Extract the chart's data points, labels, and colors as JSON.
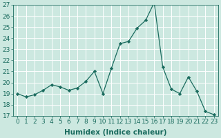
{
  "x": [
    0,
    1,
    2,
    3,
    4,
    5,
    6,
    7,
    8,
    9,
    10,
    11,
    12,
    13,
    14,
    15,
    16,
    17,
    18,
    19,
    20,
    21,
    22,
    23
  ],
  "y": [
    19.0,
    18.7,
    18.9,
    19.3,
    19.8,
    19.6,
    19.3,
    19.5,
    20.1,
    21.0,
    19.0,
    21.3,
    23.5,
    23.7,
    24.9,
    25.6,
    27.2,
    21.4,
    19.4,
    19.0,
    20.5,
    19.2,
    17.4,
    17.1
  ],
  "xlabel": "Humidex (Indice chaleur)",
  "ylim": [
    17,
    27
  ],
  "xlim": [
    -0.5,
    23.5
  ],
  "yticks": [
    17,
    18,
    19,
    20,
    21,
    22,
    23,
    24,
    25,
    26,
    27
  ],
  "xticks": [
    0,
    1,
    2,
    3,
    4,
    5,
    6,
    7,
    8,
    9,
    10,
    11,
    12,
    13,
    14,
    15,
    16,
    17,
    18,
    19,
    20,
    21,
    22,
    23
  ],
  "line_color": "#1a6b5e",
  "marker": "D",
  "marker_size": 2.2,
  "bg_color": "#cce8e0",
  "grid_color": "#ffffff",
  "axis_label_fontsize": 7.5,
  "tick_fontsize": 6.5
}
